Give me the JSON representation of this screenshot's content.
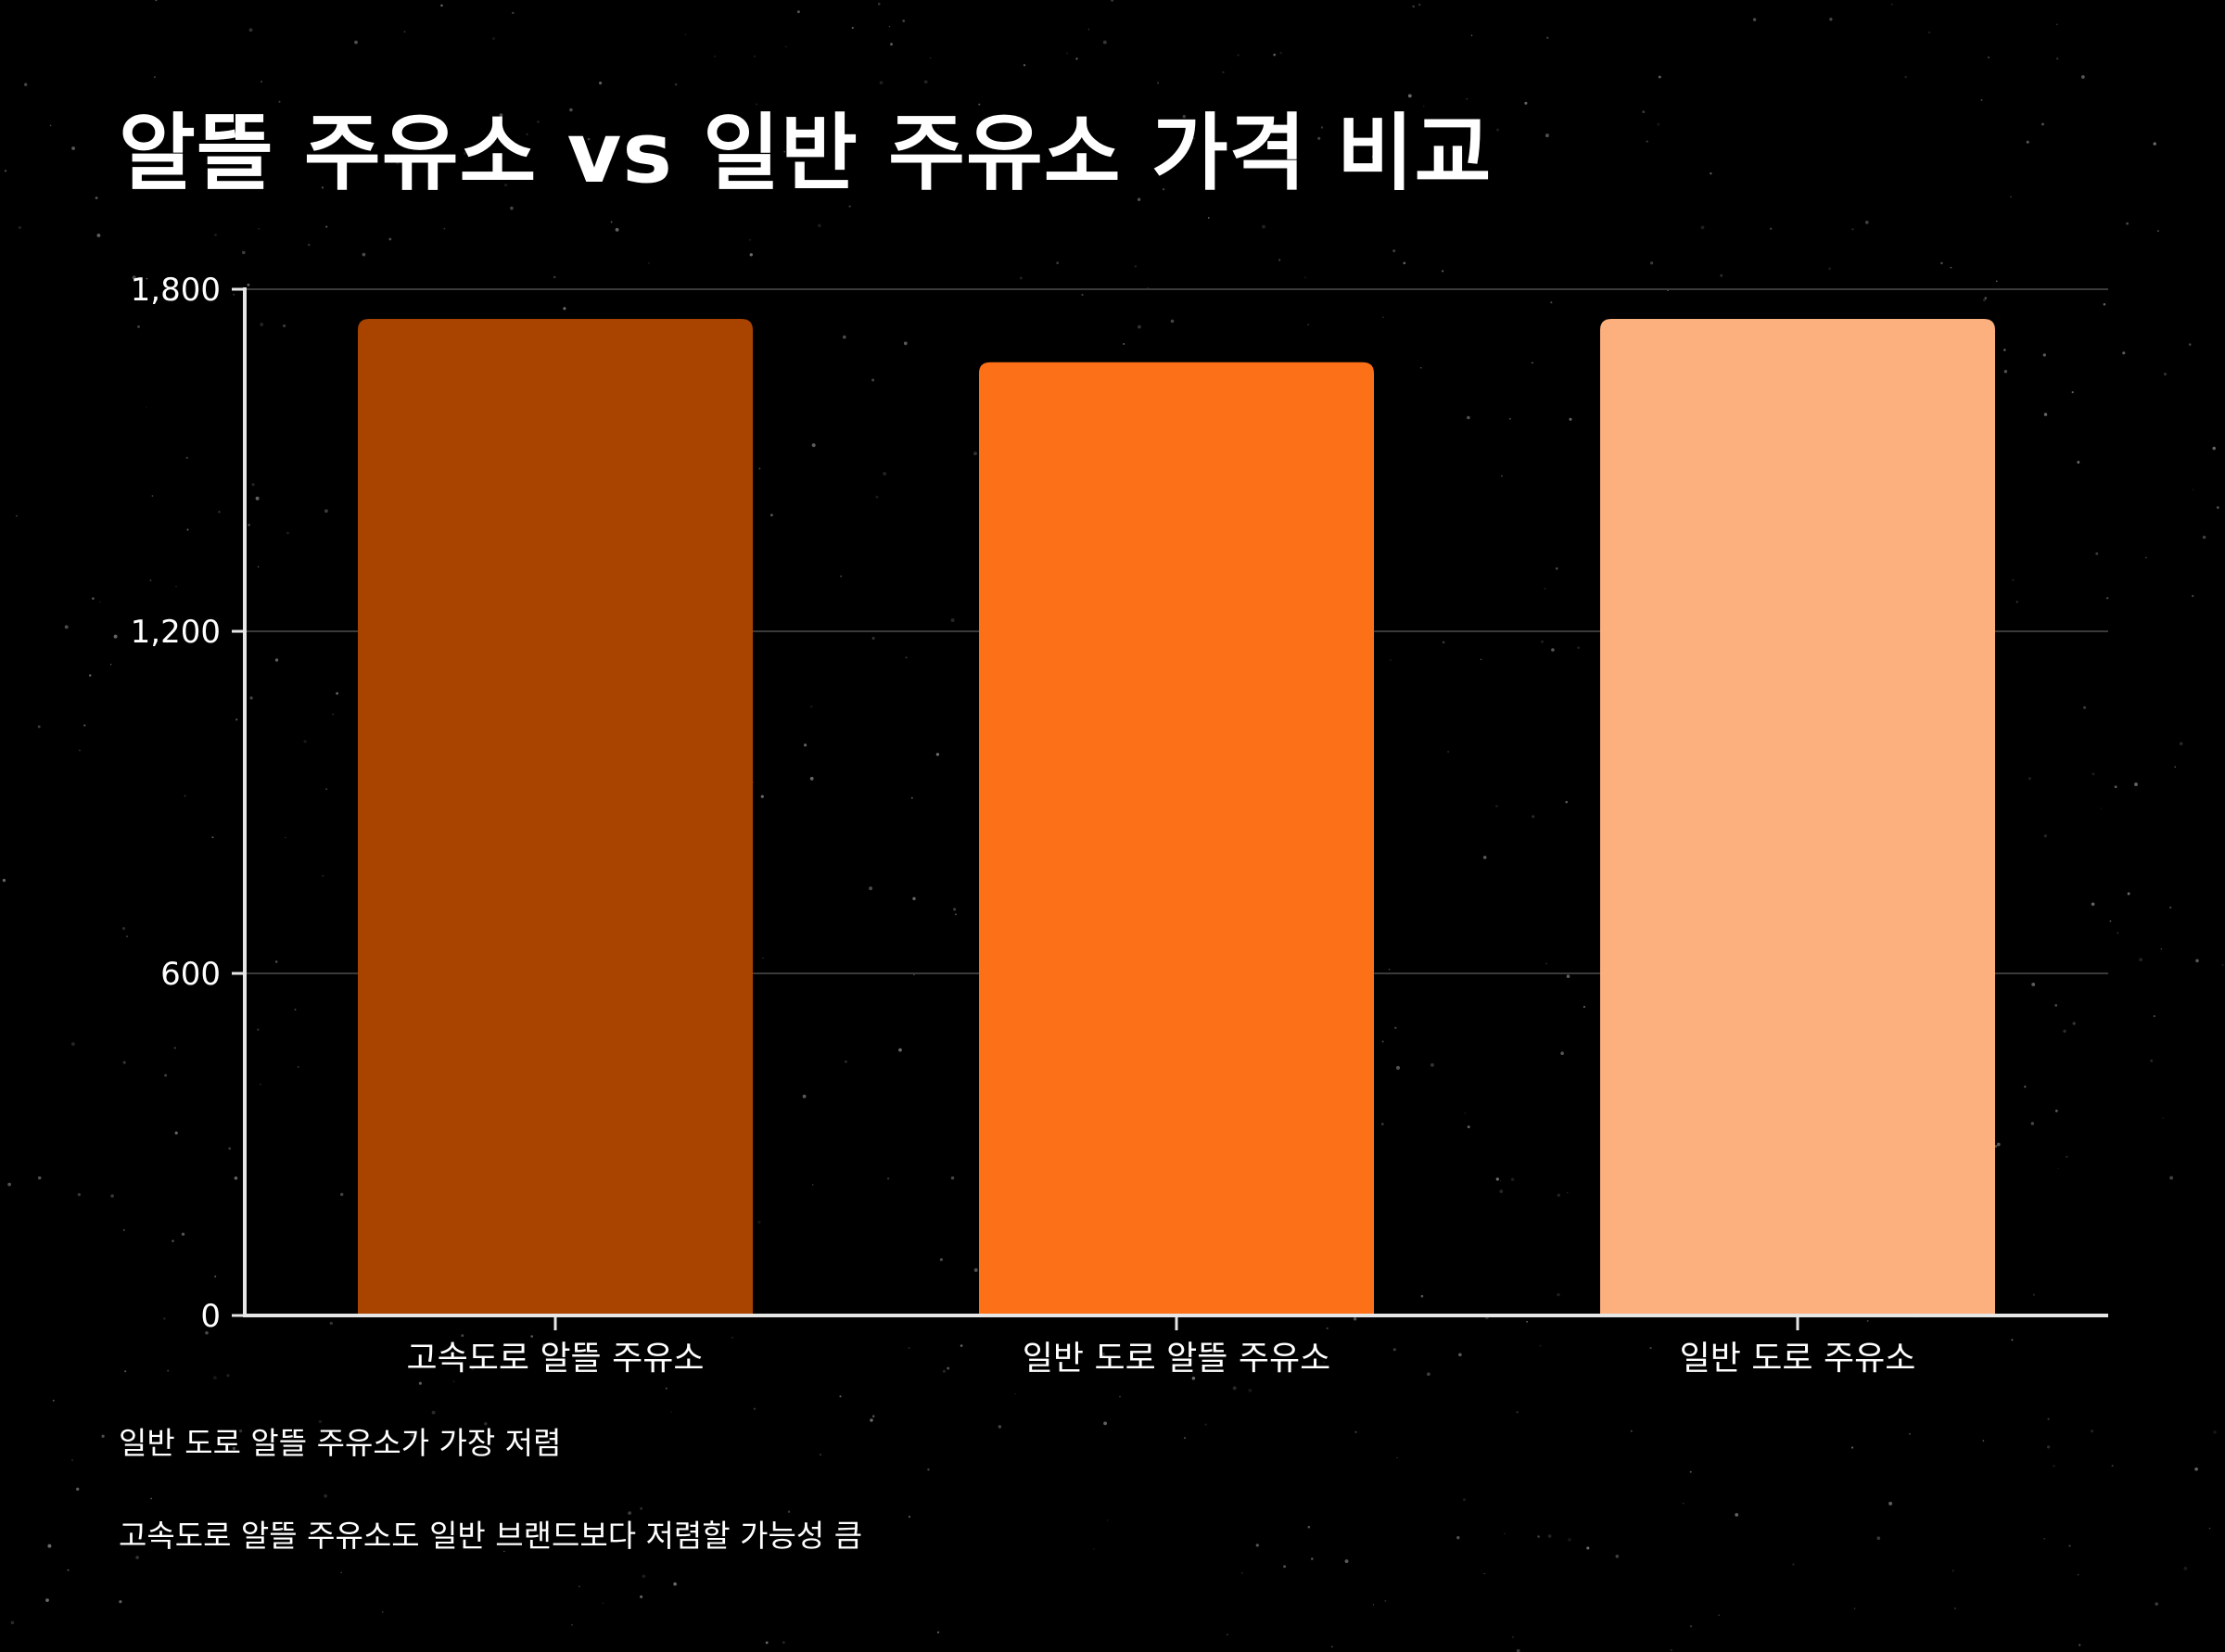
{
  "chart_data": {
    "type": "bar",
    "title": "알뜰 주유소 vs 일반 주유소 가격 비교",
    "categories": [
      "고속도로 알뜰 주유소",
      "일반 도로 알뜰 주유소",
      "일반 도로 주유소"
    ],
    "values": [
      1748,
      1672,
      1748
    ],
    "bar_colors": [
      "#A84300",
      "#FC7018",
      "#FCB07E"
    ],
    "xlabel": "",
    "ylabel": "",
    "ylim": [
      0,
      1800
    ],
    "yticks": [
      0,
      600,
      1200,
      1800
    ],
    "ytick_labels": [
      "0",
      "600",
      "1,200",
      "1,800"
    ],
    "grid": true,
    "legend": "none",
    "background": "#000000",
    "axis_color": "#E6E6E6",
    "grid_color": "#3A3A3A"
  },
  "notes": [
    "일반 도로 알뜰 주유소가 가장 저렴",
    "고속도로 알뜰 주유소도 일반 브랜드보다 저렴할 가능성 큼"
  ]
}
